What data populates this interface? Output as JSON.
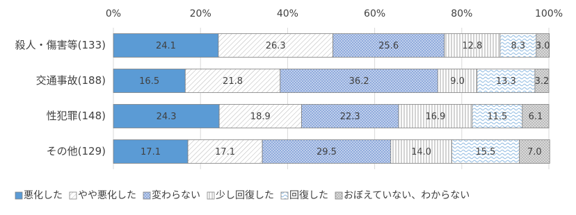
{
  "chart_data": {
    "type": "stacked-bar-horizontal",
    "categories": [
      "殺人・傷害等(133)",
      "交通事故(188)",
      "性犯罪(148)",
      "その他(129)"
    ],
    "xlim": [
      0,
      100
    ],
    "xticks": [
      {
        "value": 0,
        "label": "0%"
      },
      {
        "value": 20,
        "label": "20%"
      },
      {
        "value": 40,
        "label": "40%"
      },
      {
        "value": 60,
        "label": "60%"
      },
      {
        "value": 80,
        "label": "80%"
      },
      {
        "value": 100,
        "label": "100%"
      }
    ],
    "grid": true,
    "legend": "bottom",
    "series": [
      {
        "name": "悪化した",
        "color": "#5b9bd5",
        "values": [
          24.1,
          16.5,
          24.3,
          17.1
        ],
        "value_labels": [
          "24.1",
          "16.5",
          "24.3",
          "17.1"
        ]
      },
      {
        "name": "やや悪化した",
        "color": "#b4b4b4",
        "values": [
          26.3,
          21.8,
          18.9,
          17.1
        ],
        "value_labels": [
          "26.3",
          "21.8",
          "18.9",
          "17.1"
        ]
      },
      {
        "name": "変わらない",
        "color": "#8faadc",
        "values": [
          25.6,
          36.2,
          22.3,
          29.5
        ],
        "value_labels": [
          "25.6",
          "36.2",
          "22.3",
          "29.5"
        ]
      },
      {
        "name": "少し回復した",
        "color": "#a6a6a6",
        "values": [
          12.8,
          9.0,
          16.9,
          14.0
        ],
        "value_labels": [
          "12.8",
          "9.0",
          "16.9",
          "14.0"
        ]
      },
      {
        "name": "回復した",
        "color": "#9dc3e6",
        "values": [
          8.3,
          13.3,
          11.5,
          15.5
        ],
        "value_labels": [
          "8.3",
          "13.3",
          "11.5",
          "15.5"
        ]
      },
      {
        "name": "おぼえていない、わからない",
        "color": "#a6a6a6",
        "values": [
          3.0,
          3.2,
          6.1,
          7.0
        ],
        "value_labels": [
          "3.0",
          "3.2",
          "6.1",
          "7.0"
        ]
      }
    ]
  }
}
